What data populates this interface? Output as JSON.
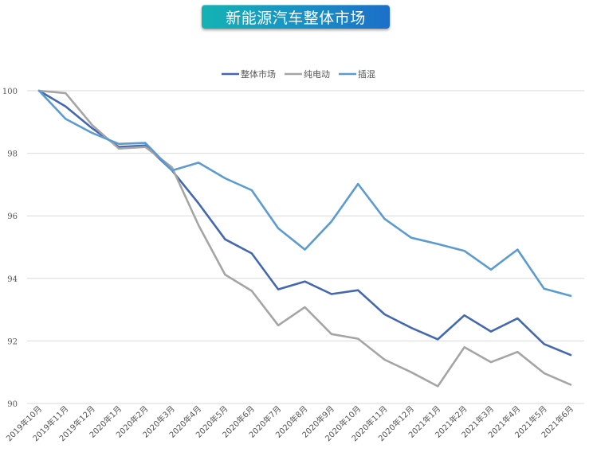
{
  "title": "新能源汽车整体市场",
  "colors": {
    "整体市场": "#4468b0",
    "纯电动": "#a5a5a5",
    "插混": "#5b9bd0",
    "grid": "#d9d9d9"
  },
  "chart_data": {
    "type": "line",
    "title": "新能源汽车整体市场",
    "xlabel": "",
    "ylabel": "",
    "ylim": [
      90,
      100
    ],
    "yticks": [
      90,
      92,
      94,
      96,
      98,
      100
    ],
    "grid": true,
    "legend_position": "top",
    "categories": [
      "2019年10月",
      "2019年11月",
      "2019年12月",
      "2020年1月",
      "2020年2月",
      "2020年3月",
      "2020年4月",
      "2020年5月",
      "2020年6月",
      "2020年7月",
      "2020年8月",
      "2020年9月",
      "2020年10月",
      "2020年11月",
      "2020年12月",
      "2021年1月",
      "2021年2月",
      "2021年3月",
      "2021年4月",
      "2021年5月",
      "2021年6月"
    ],
    "series": [
      {
        "name": "整体市场",
        "values": [
          100.0,
          99.5,
          98.8,
          98.2,
          98.25,
          97.45,
          96.4,
          95.25,
          94.8,
          93.65,
          93.9,
          93.5,
          93.62,
          92.85,
          92.42,
          92.05,
          92.82,
          92.3,
          92.72,
          91.9,
          91.55
        ]
      },
      {
        "name": "纯电动",
        "values": [
          100.0,
          99.92,
          98.9,
          98.15,
          98.2,
          97.55,
          95.7,
          94.12,
          93.6,
          92.5,
          93.08,
          92.22,
          92.07,
          91.4,
          91.0,
          90.55,
          91.8,
          91.32,
          91.65,
          90.97,
          90.6
        ]
      },
      {
        "name": "插混",
        "values": [
          100.0,
          99.1,
          98.65,
          98.3,
          98.33,
          97.45,
          97.7,
          97.2,
          96.82,
          95.6,
          94.92,
          95.82,
          97.02,
          95.9,
          95.3,
          95.1,
          94.88,
          94.28,
          94.92,
          93.67,
          93.44
        ]
      }
    ]
  }
}
